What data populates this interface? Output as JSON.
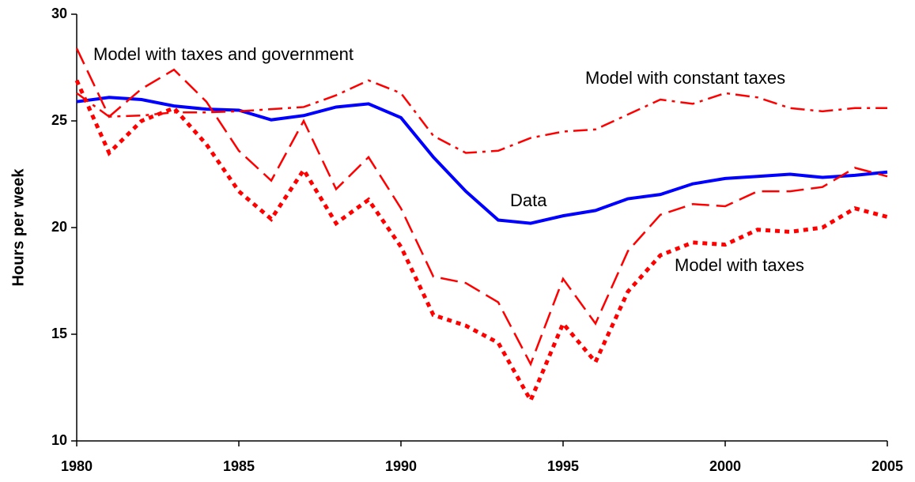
{
  "chart_data": {
    "type": "line",
    "ylabel": "Hours per week",
    "x": [
      1980,
      1981,
      1982,
      1983,
      1984,
      1985,
      1986,
      1987,
      1988,
      1989,
      1990,
      1991,
      1992,
      1993,
      1994,
      1995,
      1996,
      1997,
      1998,
      1999,
      2000,
      2001,
      2002,
      2003,
      2004,
      2005
    ],
    "series": [
      {
        "name": "Data",
        "color": "#0000ff",
        "style": "solid",
        "values": [
          25.9,
          26.1,
          26.0,
          25.7,
          25.55,
          25.5,
          25.05,
          25.25,
          25.65,
          25.8,
          25.15,
          23.3,
          21.7,
          20.35,
          20.2,
          20.55,
          20.8,
          21.35,
          21.55,
          22.05,
          22.3,
          22.4,
          22.5,
          22.35,
          22.45,
          22.6
        ]
      },
      {
        "name": "Model with constant taxes",
        "color": "#ff0000",
        "style": "dashdot",
        "values": [
          26.3,
          25.2,
          25.25,
          25.4,
          25.4,
          25.45,
          25.55,
          25.65,
          26.2,
          26.9,
          26.3,
          24.3,
          23.5,
          23.6,
          24.2,
          24.5,
          24.6,
          25.3,
          26.0,
          25.8,
          26.3,
          26.1,
          25.6,
          25.45,
          25.6,
          25.6
        ]
      },
      {
        "name": "Model with taxes and government",
        "color": "#ff0000",
        "style": "dashed",
        "values": [
          28.4,
          25.2,
          26.5,
          27.4,
          25.9,
          23.6,
          22.2,
          25.0,
          21.8,
          23.3,
          20.9,
          17.7,
          17.4,
          16.5,
          13.6,
          17.6,
          15.5,
          18.9,
          20.6,
          21.1,
          21.0,
          21.7,
          21.7,
          21.9,
          22.8,
          22.4
        ]
      },
      {
        "name": "Model with taxes",
        "color": "#ff0000",
        "style": "dotted",
        "values": [
          26.9,
          23.5,
          25.0,
          25.6,
          23.9,
          21.7,
          20.4,
          22.7,
          20.2,
          21.3,
          19.1,
          15.9,
          15.4,
          14.6,
          11.9,
          15.5,
          13.7,
          17.0,
          18.7,
          19.3,
          19.2,
          19.9,
          19.8,
          20.0,
          20.9,
          20.5
        ]
      }
    ],
    "xlim": [
      1980,
      2005
    ],
    "xticks": [
      1980,
      1985,
      1990,
      1995,
      2000,
      2005
    ],
    "ylim": [
      10,
      30
    ],
    "yticks": [
      10,
      15,
      20,
      25,
      30
    ]
  }
}
